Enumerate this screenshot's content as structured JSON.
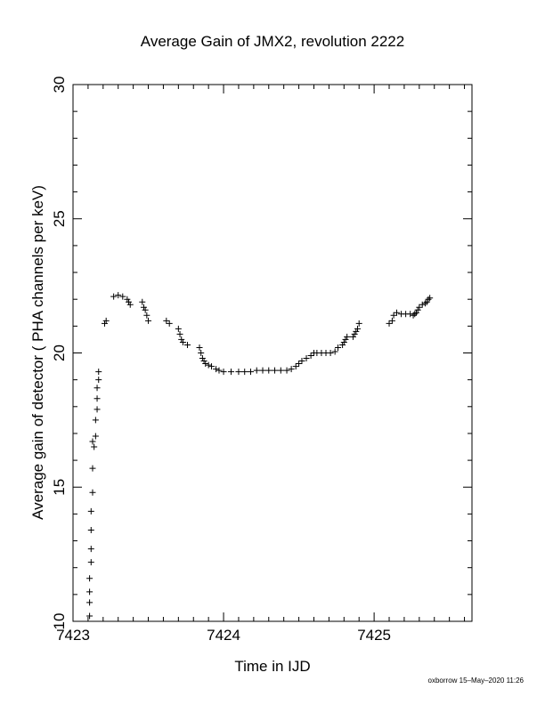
{
  "chart_data": {
    "type": "scatter",
    "title": "Average Gain of JMX2, revolution 2222",
    "xlabel": "Time in IJD",
    "ylabel": "Average gain of detector ( PHA channels per keV)",
    "xlim": [
      7423,
      7425.65
    ],
    "ylim": [
      10,
      30
    ],
    "xticks": [
      7423,
      7424,
      7425
    ],
    "yticks": [
      10,
      15,
      20,
      25,
      30
    ],
    "marker": "plus",
    "grid": false,
    "series": [
      {
        "points": [
          [
            7423.11,
            10.2
          ],
          [
            7423.11,
            10.7
          ],
          [
            7423.11,
            11.1
          ],
          [
            7423.11,
            11.6
          ],
          [
            7423.12,
            12.2
          ],
          [
            7423.12,
            12.7
          ],
          [
            7423.12,
            13.4
          ],
          [
            7423.12,
            14.1
          ],
          [
            7423.13,
            14.8
          ],
          [
            7423.13,
            15.7
          ],
          [
            7423.13,
            16.7
          ],
          [
            7423.14,
            16.5
          ],
          [
            7423.15,
            16.9
          ],
          [
            7423.15,
            17.5
          ],
          [
            7423.16,
            17.9
          ],
          [
            7423.16,
            18.3
          ],
          [
            7423.16,
            18.7
          ],
          [
            7423.17,
            19.0
          ],
          [
            7423.17,
            19.3
          ],
          [
            7423.21,
            21.1
          ],
          [
            7423.22,
            21.2
          ],
          [
            7423.27,
            22.1
          ],
          [
            7423.3,
            22.15
          ],
          [
            7423.33,
            22.1
          ],
          [
            7423.36,
            22.0
          ],
          [
            7423.37,
            21.9
          ],
          [
            7423.38,
            21.8
          ],
          [
            7423.46,
            21.9
          ],
          [
            7423.47,
            21.7
          ],
          [
            7423.48,
            21.6
          ],
          [
            7423.49,
            21.4
          ],
          [
            7423.5,
            21.2
          ],
          [
            7423.62,
            21.2
          ],
          [
            7423.64,
            21.1
          ],
          [
            7423.7,
            20.9
          ],
          [
            7423.71,
            20.7
          ],
          [
            7423.72,
            20.5
          ],
          [
            7423.73,
            20.4
          ],
          [
            7423.76,
            20.3
          ],
          [
            7423.84,
            20.2
          ],
          [
            7423.85,
            20.0
          ],
          [
            7423.86,
            19.8
          ],
          [
            7423.87,
            19.7
          ],
          [
            7423.88,
            19.6
          ],
          [
            7423.9,
            19.55
          ],
          [
            7423.92,
            19.5
          ],
          [
            7423.95,
            19.4
          ],
          [
            7423.97,
            19.35
          ],
          [
            7424.0,
            19.3
          ],
          [
            7424.05,
            19.3
          ],
          [
            7424.1,
            19.3
          ],
          [
            7424.14,
            19.3
          ],
          [
            7424.18,
            19.3
          ],
          [
            7424.22,
            19.35
          ],
          [
            7424.26,
            19.35
          ],
          [
            7424.3,
            19.35
          ],
          [
            7424.34,
            19.35
          ],
          [
            7424.38,
            19.35
          ],
          [
            7424.42,
            19.35
          ],
          [
            7424.45,
            19.4
          ],
          [
            7424.48,
            19.5
          ],
          [
            7424.5,
            19.6
          ],
          [
            7424.52,
            19.7
          ],
          [
            7424.55,
            19.8
          ],
          [
            7424.58,
            19.9
          ],
          [
            7424.6,
            20.0
          ],
          [
            7424.62,
            20.0
          ],
          [
            7424.65,
            20.0
          ],
          [
            7424.68,
            20.0
          ],
          [
            7424.71,
            20.0
          ],
          [
            7424.74,
            20.05
          ],
          [
            7424.76,
            20.2
          ],
          [
            7424.79,
            20.3
          ],
          [
            7424.8,
            20.4
          ],
          [
            7424.81,
            20.5
          ],
          [
            7424.82,
            20.6
          ],
          [
            7424.86,
            20.6
          ],
          [
            7424.87,
            20.7
          ],
          [
            7424.88,
            20.8
          ],
          [
            7424.89,
            20.9
          ],
          [
            7424.9,
            21.1
          ],
          [
            7425.1,
            21.1
          ],
          [
            7425.12,
            21.2
          ],
          [
            7425.13,
            21.4
          ],
          [
            7425.15,
            21.5
          ],
          [
            7425.18,
            21.45
          ],
          [
            7425.21,
            21.45
          ],
          [
            7425.24,
            21.45
          ],
          [
            7425.26,
            21.4
          ],
          [
            7425.27,
            21.45
          ],
          [
            7425.28,
            21.5
          ],
          [
            7425.29,
            21.6
          ],
          [
            7425.3,
            21.7
          ],
          [
            7425.32,
            21.8
          ],
          [
            7425.34,
            21.85
          ],
          [
            7425.35,
            21.9
          ],
          [
            7425.36,
            22.0
          ],
          [
            7425.37,
            22.05
          ]
        ]
      }
    ]
  },
  "footer": "oxborrow 15–May–2020 11:26"
}
